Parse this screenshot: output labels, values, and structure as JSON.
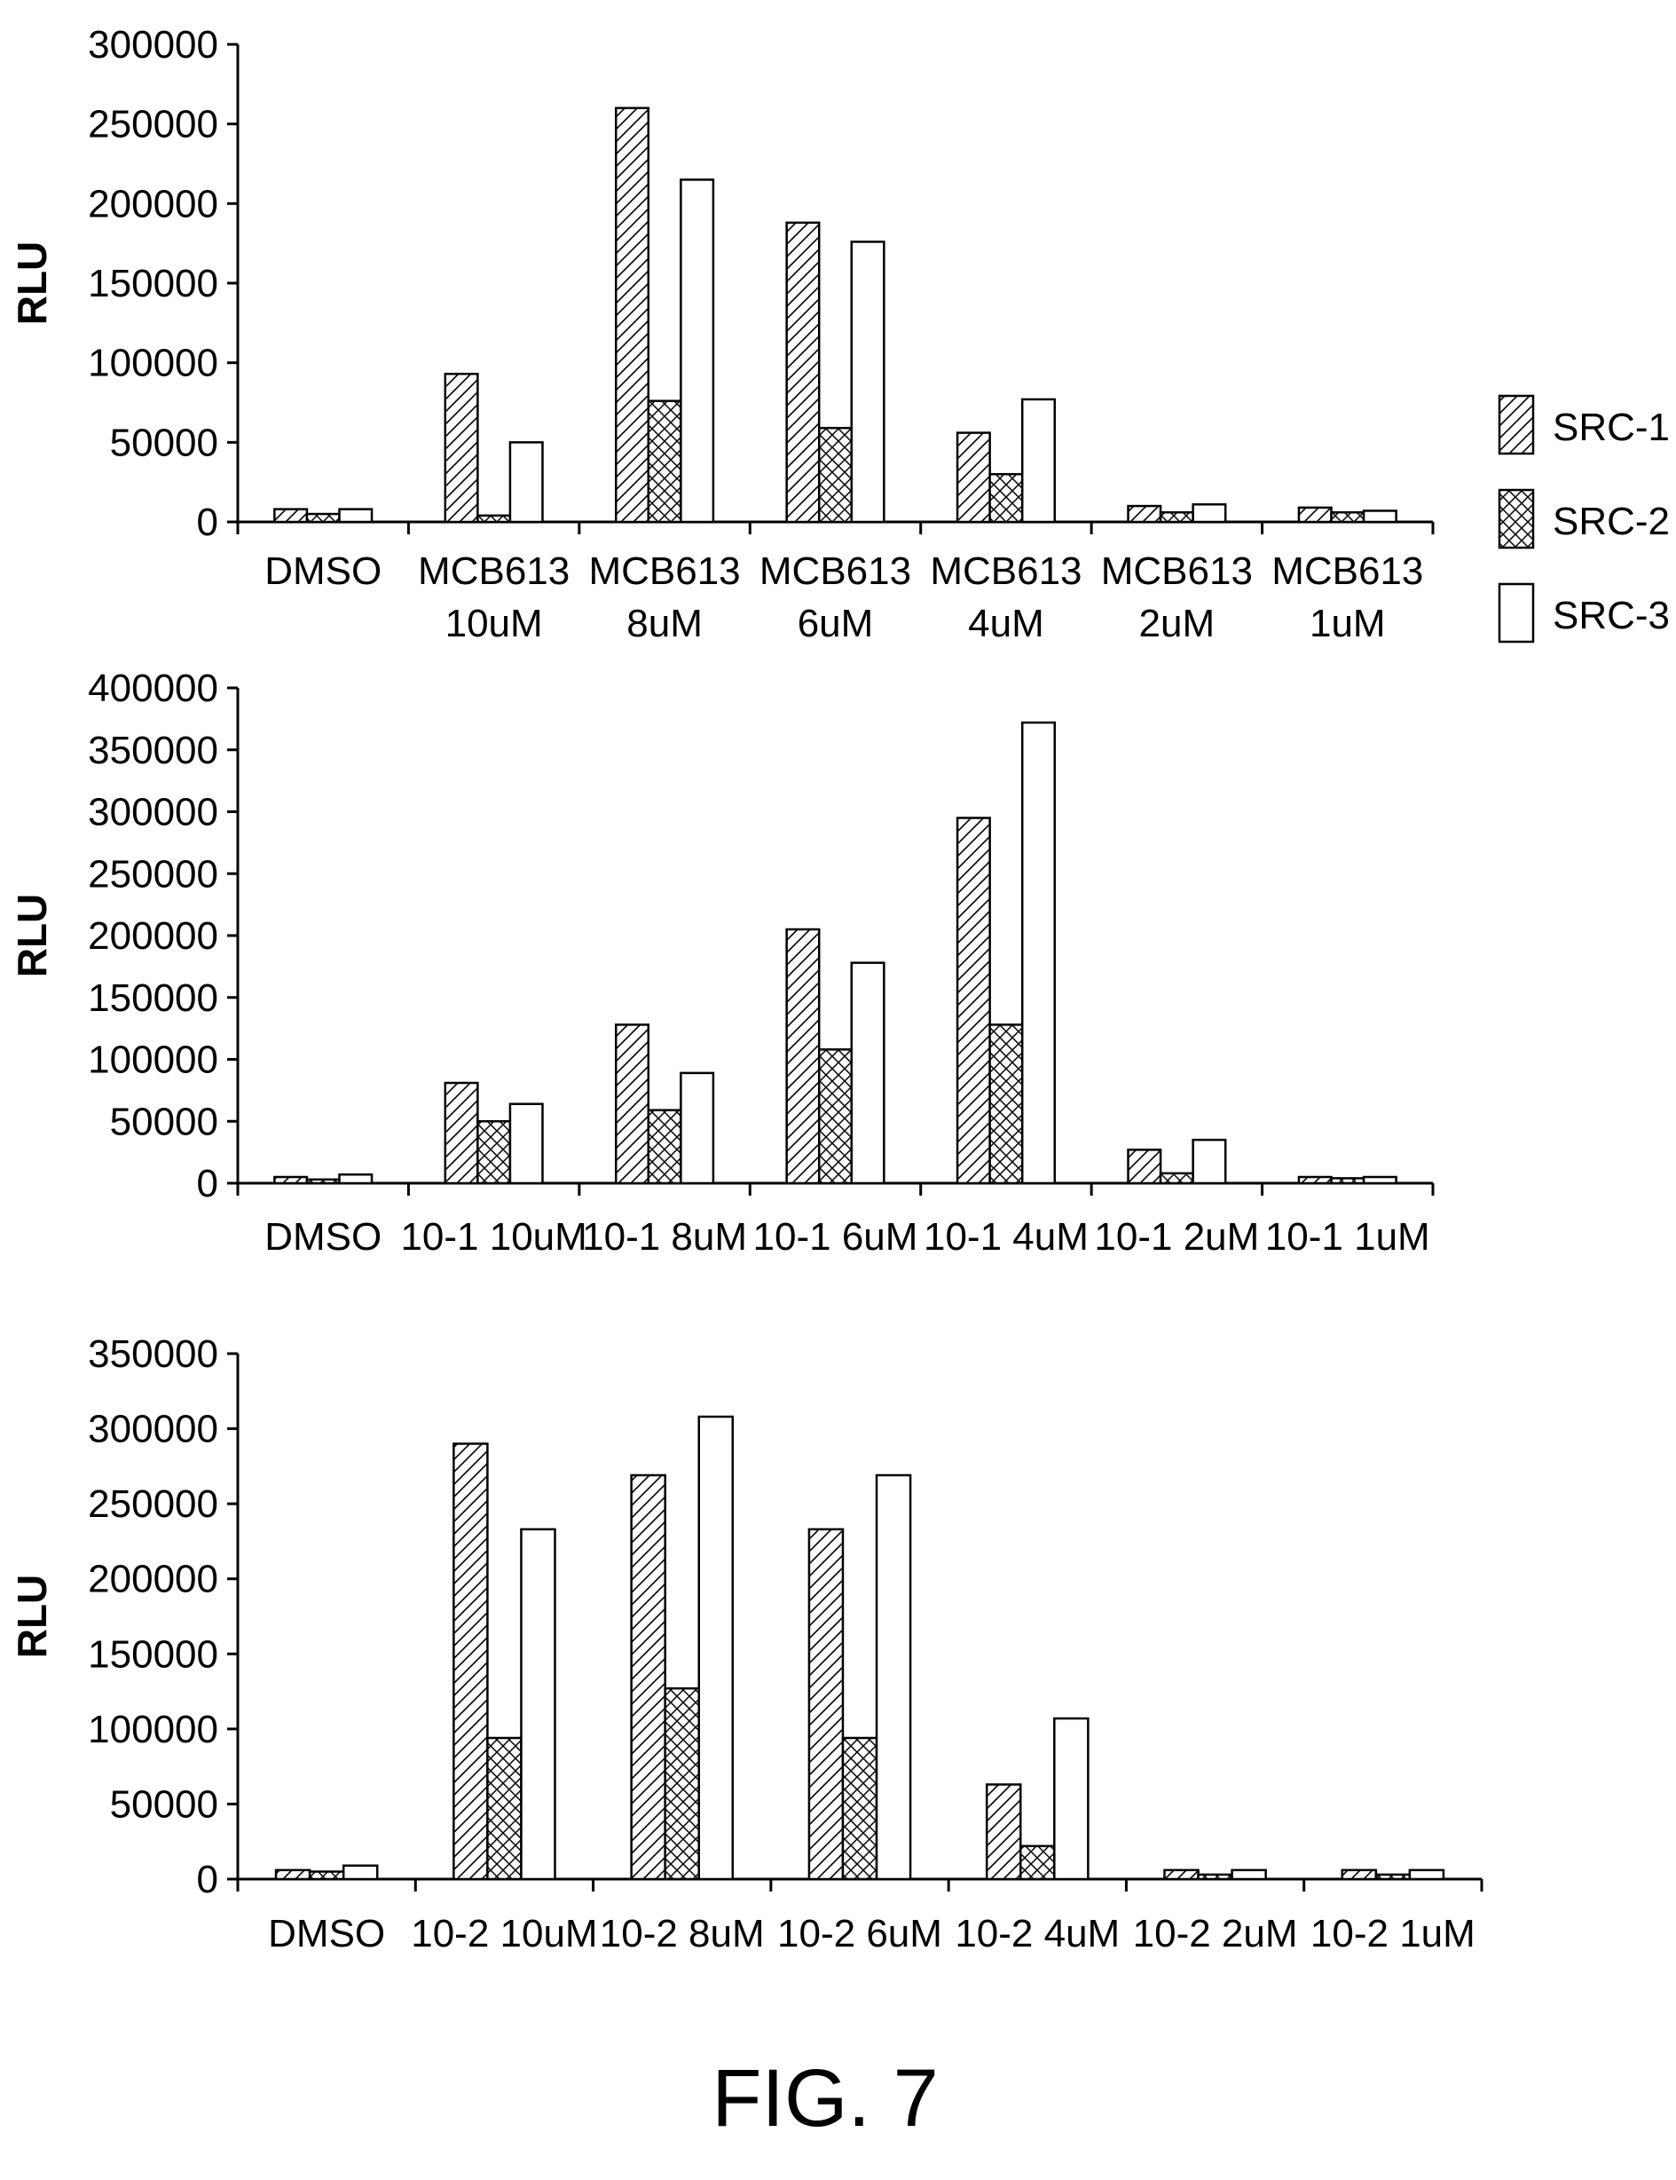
{
  "figure_label": "FIG. 7",
  "legend": {
    "position": "right",
    "items": [
      {
        "name": "SRC-1",
        "pattern": "diagonal-hatch"
      },
      {
        "name": "SRC-2",
        "pattern": "cross-hatch"
      },
      {
        "name": "SRC-3",
        "pattern": "solid-white"
      }
    ]
  },
  "colors": {
    "ink": "#000000",
    "background": "#ffffff"
  },
  "chart_data": [
    {
      "type": "bar",
      "title": "",
      "xlabel": "",
      "ylabel": "RLU",
      "ylim": [
        0,
        300000
      ],
      "yticks": [
        0,
        50000,
        100000,
        150000,
        200000,
        250000,
        300000
      ],
      "grid": false,
      "categories": [
        [
          "DMSO"
        ],
        [
          "MCB613",
          "10uM"
        ],
        [
          "MCB613",
          "8uM"
        ],
        [
          "MCB613",
          "6uM"
        ],
        [
          "MCB613",
          "4uM"
        ],
        [
          "MCB613",
          "2uM"
        ],
        [
          "MCB613",
          "1uM"
        ]
      ],
      "series": [
        {
          "name": "SRC-1",
          "values": [
            8000,
            93000,
            260000,
            188000,
            56000,
            10000,
            9000
          ]
        },
        {
          "name": "SRC-2",
          "values": [
            5000,
            4000,
            76000,
            59000,
            30000,
            6000,
            6000
          ]
        },
        {
          "name": "SRC-3",
          "values": [
            8000,
            50000,
            215000,
            176000,
            77000,
            11000,
            7000
          ]
        }
      ]
    },
    {
      "type": "bar",
      "title": "",
      "xlabel": "",
      "ylabel": "RLU",
      "ylim": [
        0,
        400000
      ],
      "yticks": [
        0,
        50000,
        100000,
        150000,
        200000,
        250000,
        300000,
        350000,
        400000
      ],
      "grid": false,
      "categories": [
        [
          "DMSO"
        ],
        [
          "10-1 10uM"
        ],
        [
          "10-1 8uM"
        ],
        [
          "10-1 6uM"
        ],
        [
          "10-1 4uM"
        ],
        [
          "10-1 2uM"
        ],
        [
          "10-1 1uM"
        ]
      ],
      "series": [
        {
          "name": "SRC-1",
          "values": [
            5000,
            81000,
            128000,
            205000,
            295000,
            27000,
            5000
          ]
        },
        {
          "name": "SRC-2",
          "values": [
            3000,
            50000,
            59000,
            108000,
            128000,
            8000,
            4000
          ]
        },
        {
          "name": "SRC-3",
          "values": [
            7000,
            64000,
            89000,
            178000,
            372000,
            35000,
            5000
          ]
        }
      ]
    },
    {
      "type": "bar",
      "title": "",
      "xlabel": "",
      "ylabel": "RLU",
      "ylim": [
        0,
        350000
      ],
      "yticks": [
        0,
        50000,
        100000,
        150000,
        200000,
        250000,
        300000,
        350000
      ],
      "grid": false,
      "categories": [
        [
          "DMSO"
        ],
        [
          "10-2 10uM"
        ],
        [
          "10-2 8uM"
        ],
        [
          "10-2 6uM"
        ],
        [
          "10-2 4uM"
        ],
        [
          "10-2 2uM"
        ],
        [
          "10-2 1uM"
        ]
      ],
      "series": [
        {
          "name": "SRC-1",
          "values": [
            6000,
            290000,
            269000,
            233000,
            63000,
            6000,
            6000
          ]
        },
        {
          "name": "SRC-2",
          "values": [
            5000,
            94000,
            127000,
            94000,
            22000,
            3000,
            3000
          ]
        },
        {
          "name": "SRC-3",
          "values": [
            9000,
            233000,
            308000,
            269000,
            107000,
            6000,
            6000
          ]
        }
      ]
    }
  ]
}
